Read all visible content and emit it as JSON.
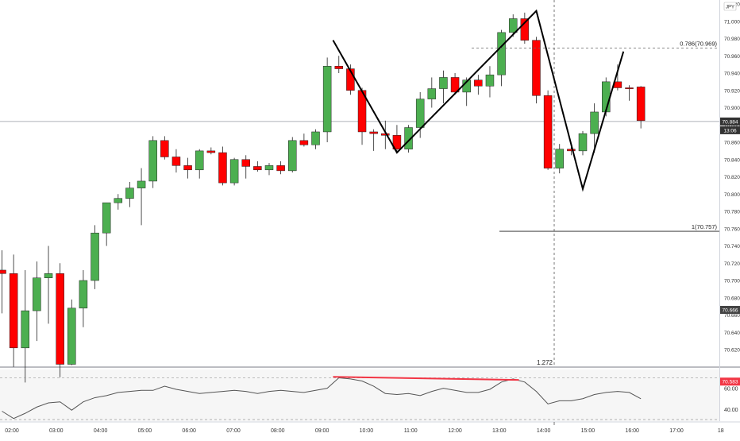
{
  "chart_data": {
    "type": "candlestick",
    "currency_label": "JPY",
    "price_axis": {
      "min": 70.53,
      "max": 71.06,
      "ticks": [
        "71.040",
        "71.020",
        "71.000",
        "70.980",
        "70.960",
        "70.940",
        "70.920",
        "70.900",
        "70.880",
        "70.860",
        "70.840",
        "70.820",
        "70.800",
        "70.780",
        "70.760",
        "70.740",
        "70.720",
        "70.700",
        "70.680",
        "70.660",
        "70.640",
        "70.620",
        "70.600",
        "70.580",
        "70.560",
        "70.540"
      ]
    },
    "time_axis": {
      "labels": [
        "02:00",
        "03:00",
        "04:00",
        "05:00",
        "06:00",
        "07:00",
        "08:00",
        "09:00",
        "10:00",
        "11:00",
        "12:00",
        "13:00",
        "14:00",
        "15:00",
        "16:00",
        "17:00",
        "18"
      ]
    },
    "candles": [
      {
        "o": 70.712,
        "h": 70.735,
        "l": 70.662,
        "c": 70.708
      },
      {
        "o": 70.708,
        "h": 70.73,
        "l": 70.6,
        "c": 70.622
      },
      {
        "o": 70.622,
        "h": 70.712,
        "l": 70.582,
        "c": 70.665
      },
      {
        "o": 70.665,
        "h": 70.722,
        "l": 70.63,
        "c": 70.703
      },
      {
        "o": 70.703,
        "h": 70.74,
        "l": 70.65,
        "c": 70.708
      },
      {
        "o": 70.708,
        "h": 70.72,
        "l": 70.588,
        "c": 70.603
      },
      {
        "o": 70.603,
        "h": 70.678,
        "l": 70.602,
        "c": 70.668
      },
      {
        "o": 70.668,
        "h": 70.712,
        "l": 70.646,
        "c": 70.7
      },
      {
        "o": 70.7,
        "h": 70.764,
        "l": 70.69,
        "c": 70.755
      },
      {
        "o": 70.755,
        "h": 70.79,
        "l": 70.74,
        "c": 70.79
      },
      {
        "o": 70.79,
        "h": 70.8,
        "l": 70.782,
        "c": 70.795
      },
      {
        "o": 70.795,
        "h": 70.814,
        "l": 70.785,
        "c": 70.807
      },
      {
        "o": 70.807,
        "h": 70.83,
        "l": 70.764,
        "c": 70.815
      },
      {
        "o": 70.815,
        "h": 70.867,
        "l": 70.807,
        "c": 70.862
      },
      {
        "o": 70.862,
        "h": 70.867,
        "l": 70.84,
        "c": 70.843
      },
      {
        "o": 70.843,
        "h": 70.852,
        "l": 70.825,
        "c": 70.833
      },
      {
        "o": 70.833,
        "h": 70.842,
        "l": 70.818,
        "c": 70.828
      },
      {
        "o": 70.828,
        "h": 70.852,
        "l": 70.818,
        "c": 70.85
      },
      {
        "o": 70.85,
        "h": 70.854,
        "l": 70.846,
        "c": 70.848
      },
      {
        "o": 70.848,
        "h": 70.855,
        "l": 70.81,
        "c": 70.813
      },
      {
        "o": 70.813,
        "h": 70.842,
        "l": 70.81,
        "c": 70.84
      },
      {
        "o": 70.84,
        "h": 70.845,
        "l": 70.818,
        "c": 70.832
      },
      {
        "o": 70.832,
        "h": 70.838,
        "l": 70.826,
        "c": 70.828
      },
      {
        "o": 70.828,
        "h": 70.836,
        "l": 70.822,
        "c": 70.833
      },
      {
        "o": 70.833,
        "h": 70.838,
        "l": 70.823,
        "c": 70.827
      },
      {
        "o": 70.827,
        "h": 70.866,
        "l": 70.825,
        "c": 70.862
      },
      {
        "o": 70.862,
        "h": 70.87,
        "l": 70.855,
        "c": 70.857
      },
      {
        "o": 70.857,
        "h": 70.875,
        "l": 70.852,
        "c": 70.872
      },
      {
        "o": 70.872,
        "h": 70.958,
        "l": 70.86,
        "c": 70.948
      },
      {
        "o": 70.948,
        "h": 70.96,
        "l": 70.94,
        "c": 70.945
      },
      {
        "o": 70.945,
        "h": 70.95,
        "l": 70.915,
        "c": 70.92
      },
      {
        "o": 70.92,
        "h": 70.923,
        "l": 70.857,
        "c": 70.872
      },
      {
        "o": 70.872,
        "h": 70.875,
        "l": 70.85,
        "c": 70.87
      },
      {
        "o": 70.87,
        "h": 70.885,
        "l": 70.852,
        "c": 70.868
      },
      {
        "o": 70.868,
        "h": 70.88,
        "l": 70.848,
        "c": 70.852
      },
      {
        "o": 70.852,
        "h": 70.88,
        "l": 70.848,
        "c": 70.877
      },
      {
        "o": 70.877,
        "h": 70.918,
        "l": 70.865,
        "c": 70.91
      },
      {
        "o": 70.91,
        "h": 70.935,
        "l": 70.9,
        "c": 70.922
      },
      {
        "o": 70.922,
        "h": 70.943,
        "l": 70.905,
        "c": 70.935
      },
      {
        "o": 70.935,
        "h": 70.94,
        "l": 70.915,
        "c": 70.918
      },
      {
        "o": 70.918,
        "h": 70.935,
        "l": 70.902,
        "c": 70.932
      },
      {
        "o": 70.932,
        "h": 70.938,
        "l": 70.915,
        "c": 70.925
      },
      {
        "o": 70.925,
        "h": 70.948,
        "l": 70.912,
        "c": 70.938
      },
      {
        "o": 70.938,
        "h": 70.99,
        "l": 70.925,
        "c": 70.987
      },
      {
        "o": 70.987,
        "h": 71.008,
        "l": 70.982,
        "c": 71.003
      },
      {
        "o": 71.003,
        "h": 71.01,
        "l": 70.974,
        "c": 70.978
      },
      {
        "o": 70.978,
        "h": 70.982,
        "l": 70.905,
        "c": 70.914
      },
      {
        "o": 70.914,
        "h": 70.92,
        "l": 70.828,
        "c": 70.83
      },
      {
        "o": 70.83,
        "h": 70.858,
        "l": 70.824,
        "c": 70.852
      },
      {
        "o": 70.852,
        "h": 70.858,
        "l": 70.845,
        "c": 70.85
      },
      {
        "o": 70.85,
        "h": 70.873,
        "l": 70.845,
        "c": 70.87
      },
      {
        "o": 70.87,
        "h": 70.905,
        "l": 70.848,
        "c": 70.895
      },
      {
        "o": 70.895,
        "h": 70.935,
        "l": 70.89,
        "c": 70.93
      },
      {
        "o": 70.93,
        "h": 70.95,
        "l": 70.92,
        "c": 70.923
      },
      {
        "o": 70.923,
        "h": 70.926,
        "l": 70.908,
        "c": 70.922
      },
      {
        "o": 70.924,
        "h": 70.925,
        "l": 70.876,
        "c": 70.885
      }
    ],
    "zigzag": [
      {
        "candle": 28.5,
        "price": 70.978
      },
      {
        "candle": 34.0,
        "price": 70.848
      },
      {
        "candle": 46.0,
        "price": 71.012
      },
      {
        "candle": 50.0,
        "price": 70.806
      },
      {
        "candle": 53.5,
        "price": 70.965
      }
    ],
    "fib_levels": [
      {
        "label": "0.786(70.969)",
        "price": 70.969
      },
      {
        "label": "1(70.757)",
        "price": 70.757
      }
    ],
    "fib_ext_label": "1.272",
    "current_price_line": 70.884,
    "price_tags": [
      {
        "text": "70.884",
        "price": 70.884,
        "color": "#333333"
      },
      {
        "text": "13:06",
        "price": 70.875,
        "color": "#333333"
      },
      {
        "text": "70.666",
        "price": 70.666,
        "color": "#444444"
      },
      {
        "text": "70.583",
        "price": 70.583,
        "color": "#f23645"
      }
    ],
    "oscillator": {
      "min": 30,
      "max": 75,
      "ticks": [
        "60.00",
        "40.00"
      ],
      "levels": [
        70,
        30
      ],
      "values": [
        38,
        31,
        36,
        42,
        46,
        47,
        39,
        47,
        51,
        53,
        56,
        57,
        58,
        58,
        62,
        59,
        57,
        55,
        56,
        57,
        58,
        57,
        55,
        57,
        58,
        57,
        56,
        58,
        60,
        70,
        69,
        67,
        62,
        55,
        54,
        55,
        53,
        57,
        60,
        58,
        56,
        56,
        59,
        66,
        69,
        66,
        57,
        45,
        48,
        48,
        50,
        54,
        56,
        57,
        56,
        50
      ],
      "divergence_line": {
        "from": {
          "candle": 28.5,
          "value": 71
        },
        "to": {
          "candle": 44.5,
          "value": 68
        }
      }
    },
    "colors": {
      "bull": "#4caf50",
      "bear": "#ff0000",
      "zigzag": "#000000",
      "divergence": "#f23645"
    }
  }
}
